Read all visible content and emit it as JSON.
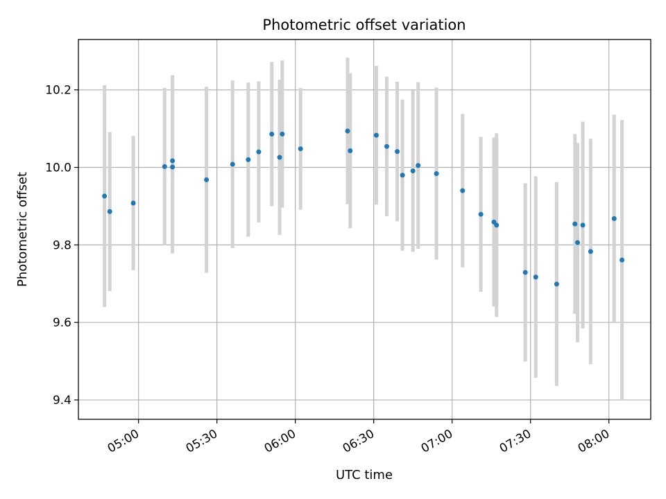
{
  "chart_data": {
    "type": "scatter",
    "title": "Photometric offset variation",
    "xlabel": "UTC time",
    "ylabel": "Photometric offset",
    "xlim": [
      "04:37",
      "08:16"
    ],
    "ylim": [
      9.35,
      10.33
    ],
    "x_ticks": [
      "05:00",
      "05:30",
      "06:00",
      "06:30",
      "07:00",
      "07:30",
      "08:00"
    ],
    "y_ticks": [
      9.4,
      9.6,
      9.8,
      10.0,
      10.2
    ],
    "grid": true,
    "colors": {
      "point": "#1f77b4",
      "errorbar": "#d3d3d3"
    },
    "series": [
      {
        "x": [
          "04:47",
          "04:49",
          "04:58",
          "05:10",
          "05:13",
          "05:13",
          "05:26",
          "05:36",
          "05:42",
          "05:46",
          "05:51",
          "05:54",
          "05:55",
          "06:02",
          "06:20",
          "06:21",
          "06:31",
          "06:35",
          "06:39",
          "06:41",
          "06:45",
          "06:47",
          "06:54",
          "07:04",
          "07:11",
          "07:16",
          "07:17",
          "07:28",
          "07:32",
          "07:40",
          "07:47",
          "07:48",
          "07:50",
          "07:53",
          "08:02",
          "08:05"
        ],
        "y": [
          9.926,
          9.886,
          9.908,
          10.002,
          10.001,
          10.017,
          9.968,
          10.008,
          10.02,
          10.04,
          10.086,
          10.026,
          10.086,
          10.048,
          10.094,
          10.043,
          10.083,
          10.054,
          10.041,
          9.98,
          9.991,
          10.005,
          9.984,
          9.94,
          9.879,
          9.859,
          9.851,
          9.729,
          9.717,
          9.699,
          9.854,
          9.806,
          9.851,
          9.783,
          9.868,
          9.761
        ],
        "yerr": [
          0.286,
          0.205,
          0.173,
          0.203,
          0.223,
          0.221,
          0.24,
          0.216,
          0.199,
          0.182,
          0.186,
          0.2,
          0.19,
          0.157,
          0.189,
          0.2,
          0.179,
          0.18,
          0.18,
          0.195,
          0.209,
          0.215,
          0.222,
          0.198,
          0.2,
          0.218,
          0.237,
          0.23,
          0.26,
          0.263,
          0.232,
          0.257,
          0.267,
          0.291,
          0.268,
          0.361
        ]
      }
    ]
  }
}
